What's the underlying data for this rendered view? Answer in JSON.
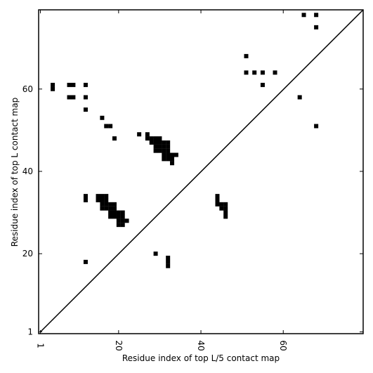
{
  "chart_data": {
    "type": "scatter",
    "title": "",
    "xlabel": "Residue index of top L/5 contact map",
    "ylabel": "Residue index of top L contact map",
    "xlim": [
      1,
      80
    ],
    "ylim": [
      1,
      80
    ],
    "xticks": [
      1,
      20,
      40,
      60
    ],
    "yticks": [
      1,
      20,
      40,
      60
    ],
    "diagonal": true,
    "grid": false,
    "legend": "none",
    "marker": "square",
    "color": "#000000",
    "points": [
      [
        4,
        61
      ],
      [
        4,
        60
      ],
      [
        8,
        61
      ],
      [
        9,
        61
      ],
      [
        12,
        61
      ],
      [
        8,
        58
      ],
      [
        9,
        58
      ],
      [
        12,
        58
      ],
      [
        12,
        55
      ],
      [
        16,
        53
      ],
      [
        17,
        51
      ],
      [
        18,
        51
      ],
      [
        19,
        48
      ],
      [
        25,
        49
      ],
      [
        27,
        49
      ],
      [
        27,
        48
      ],
      [
        28,
        48
      ],
      [
        29,
        48
      ],
      [
        30,
        48
      ],
      [
        28,
        47
      ],
      [
        29,
        47
      ],
      [
        30,
        47
      ],
      [
        31,
        47
      ],
      [
        32,
        47
      ],
      [
        29,
        46
      ],
      [
        30,
        46
      ],
      [
        31,
        46
      ],
      [
        32,
        46
      ],
      [
        29,
        45
      ],
      [
        30,
        45
      ],
      [
        31,
        45
      ],
      [
        32,
        45
      ],
      [
        31,
        44
      ],
      [
        32,
        44
      ],
      [
        33,
        44
      ],
      [
        34,
        44
      ],
      [
        31,
        43
      ],
      [
        32,
        43
      ],
      [
        33,
        43
      ],
      [
        33,
        42
      ],
      [
        12,
        34
      ],
      [
        12,
        33
      ],
      [
        15,
        34
      ],
      [
        16,
        34
      ],
      [
        17,
        34
      ],
      [
        15,
        33
      ],
      [
        16,
        33
      ],
      [
        17,
        33
      ],
      [
        16,
        32
      ],
      [
        17,
        32
      ],
      [
        18,
        32
      ],
      [
        19,
        32
      ],
      [
        16,
        31
      ],
      [
        17,
        31
      ],
      [
        18,
        31
      ],
      [
        19,
        31
      ],
      [
        18,
        30
      ],
      [
        19,
        30
      ],
      [
        20,
        30
      ],
      [
        21,
        30
      ],
      [
        18,
        29
      ],
      [
        19,
        29
      ],
      [
        20,
        29
      ],
      [
        21,
        29
      ],
      [
        20,
        28
      ],
      [
        21,
        28
      ],
      [
        22,
        28
      ],
      [
        20,
        27
      ],
      [
        21,
        27
      ],
      [
        44,
        34
      ],
      [
        44,
        33
      ],
      [
        44,
        32
      ],
      [
        45,
        32
      ],
      [
        46,
        32
      ],
      [
        45,
        31
      ],
      [
        46,
        31
      ],
      [
        46,
        30
      ],
      [
        46,
        29
      ],
      [
        12,
        18
      ],
      [
        29,
        20
      ],
      [
        32,
        19
      ],
      [
        32,
        18
      ],
      [
        32,
        17
      ],
      [
        51,
        68
      ],
      [
        51,
        64
      ],
      [
        53,
        64
      ],
      [
        55,
        64
      ],
      [
        58,
        64
      ],
      [
        55,
        61
      ],
      [
        64,
        58
      ],
      [
        68,
        51
      ],
      [
        65,
        78
      ],
      [
        68,
        78
      ],
      [
        68,
        75
      ]
    ]
  }
}
